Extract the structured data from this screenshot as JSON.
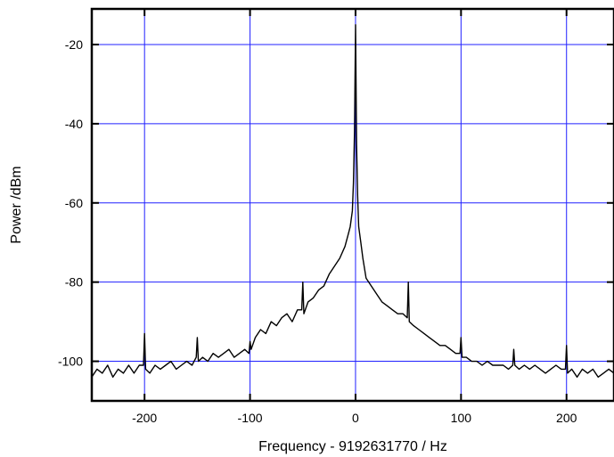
{
  "chart_data": {
    "type": "line",
    "title": "",
    "xlabel": "Frequency - 9192631770 / Hz",
    "ylabel": "Power /dBm",
    "xlim": [
      -250,
      245
    ],
    "ylim": [
      -110,
      -11
    ],
    "x_ticks": [
      -200,
      -100,
      0,
      100,
      200
    ],
    "y_ticks": [
      -20,
      -40,
      -60,
      -80,
      -100
    ],
    "x_tick_labels": [
      "-200",
      "-100",
      "0",
      "100",
      "200"
    ],
    "y_tick_labels": [
      "-20",
      "-40",
      "-60",
      "-80",
      "-100"
    ],
    "grid": true,
    "legend": "none",
    "colors": {
      "grid": "#2020ff",
      "line": "#000000",
      "axes": "#000000"
    },
    "series": [
      {
        "x": [
          -250,
          -245,
          -240,
          -235,
          -230,
          -225,
          -220,
          -215,
          -210,
          -205,
          -201,
          -200,
          -199,
          -195,
          -190,
          -185,
          -180,
          -175,
          -170,
          -165,
          -160,
          -155,
          -151,
          -150,
          -149,
          -145,
          -140,
          -135,
          -130,
          -125,
          -120,
          -115,
          -110,
          -105,
          -101,
          -100,
          -99,
          -95,
          -90,
          -85,
          -80,
          -75,
          -70,
          -65,
          -60,
          -55,
          -51,
          -50,
          -49,
          -45,
          -40,
          -35,
          -30,
          -25,
          -20,
          -15,
          -10,
          -7,
          -5,
          -3,
          -2,
          -1,
          0,
          1,
          2,
          3,
          5,
          7,
          10,
          15,
          20,
          25,
          30,
          35,
          40,
          45,
          49,
          50,
          51,
          55,
          60,
          65,
          70,
          75,
          80,
          85,
          90,
          95,
          99,
          100,
          101,
          105,
          110,
          115,
          120,
          125,
          130,
          135,
          140,
          145,
          149,
          150,
          151,
          155,
          160,
          165,
          170,
          175,
          180,
          185,
          190,
          195,
          199,
          200,
          201,
          205,
          210,
          215,
          220,
          225,
          230,
          235,
          240,
          245
        ],
        "y": [
          -104,
          -102,
          -103,
          -101,
          -104,
          -102,
          -103,
          -101,
          -103,
          -101,
          -101,
          -93,
          -102,
          -103,
          -101,
          -102,
          -101,
          -100,
          -102,
          -101,
          -100,
          -101,
          -99,
          -94,
          -100,
          -99,
          -100,
          -98,
          -99,
          -98,
          -97,
          -99,
          -98,
          -97,
          -98,
          -95,
          -97,
          -94,
          -92,
          -93,
          -90,
          -91,
          -89,
          -88,
          -90,
          -87,
          -87,
          -80,
          -88,
          -85,
          -84,
          -82,
          -81,
          -78,
          -76,
          -74,
          -71,
          -68,
          -66,
          -62,
          -55,
          -42,
          -15,
          -45,
          -58,
          -66,
          -70,
          -74,
          -79,
          -81,
          -83,
          -85,
          -86,
          -87,
          -88,
          -88,
          -89,
          -80,
          -90,
          -91,
          -92,
          -93,
          -94,
          -95,
          -96,
          -96,
          -97,
          -98,
          -98,
          -94,
          -99,
          -99,
          -100,
          -100,
          -101,
          -100,
          -101,
          -101,
          -101,
          -102,
          -101,
          -97,
          -101,
          -102,
          -101,
          -102,
          -101,
          -102,
          -103,
          -102,
          -101,
          -102,
          -102,
          -96,
          -103,
          -102,
          -104,
          -102,
          -103,
          -102,
          -104,
          -103,
          -102,
          -103
        ]
      }
    ]
  }
}
